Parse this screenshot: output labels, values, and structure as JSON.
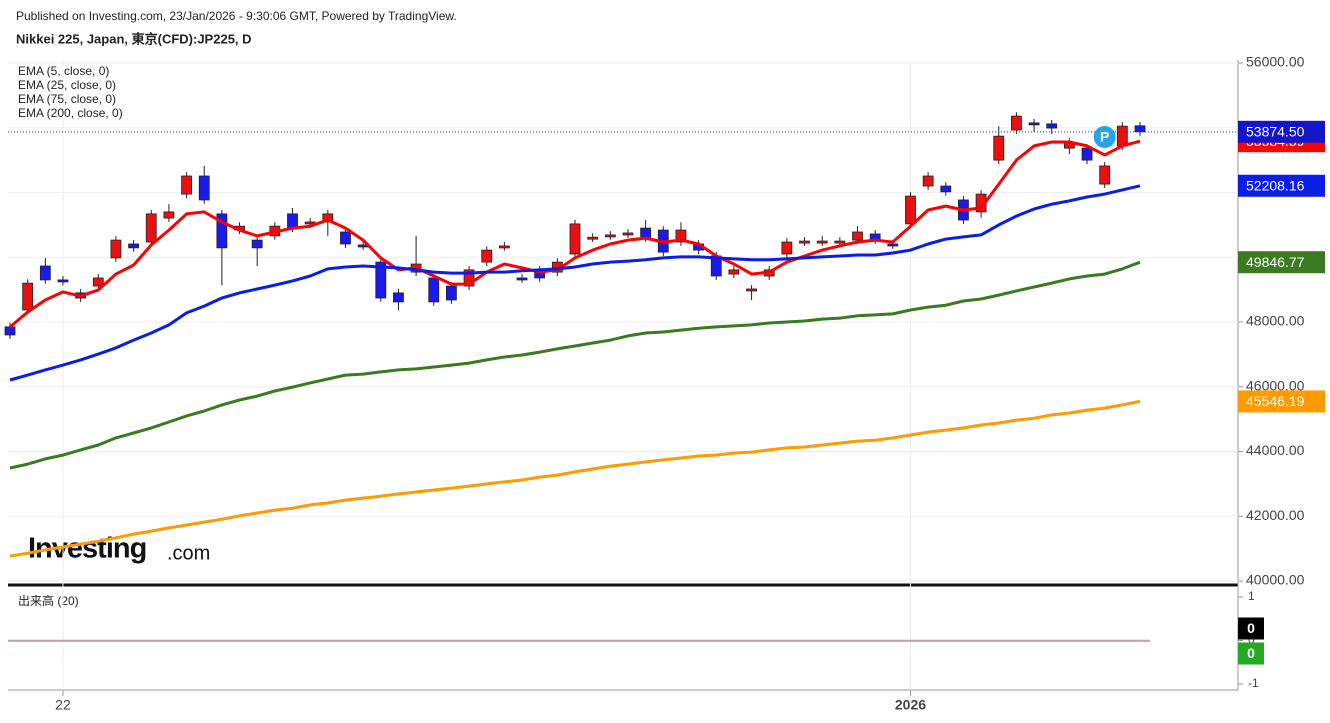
{
  "chart_data": {
    "type": "candlestick",
    "source": "Published on Investing.com, 23/Jan/2026 - 9:30:06 GMT, Powered by TradingView.",
    "title": "Nikkei 225, Japan, 東京(CFD):JP225, D",
    "logo": [
      "Investing",
      ".com"
    ],
    "marker_label": "P",
    "last_label": "53874.50",
    "grid": true,
    "categories": [
      null,
      null,
      null,
      "22",
      null,
      null,
      null,
      null,
      null,
      null,
      null,
      null,
      null,
      null,
      null,
      null,
      null,
      null,
      null,
      null,
      null,
      null,
      null,
      null,
      null,
      null,
      null,
      null,
      null,
      null,
      null,
      null,
      null,
      null,
      null,
      null,
      null,
      null,
      null,
      null,
      null,
      null,
      null,
      null,
      null,
      null,
      null,
      null,
      null,
      null,
      null,
      "2026",
      null,
      null,
      null,
      null,
      null,
      null,
      null,
      null,
      null,
      null,
      null,
      null,
      null
    ],
    "candles": {
      "up_color": "#e81010",
      "down_color": "#1a1aee",
      "open": [
        47850,
        48370,
        49730,
        49300,
        48900,
        49110,
        49980,
        50410,
        50470,
        51210,
        51950,
        52510,
        51340,
        50840,
        50530,
        50660,
        51340,
        51030,
        51090,
        50780,
        50380,
        49850,
        48900,
        49540,
        49360,
        49110,
        49110,
        49850,
        50320,
        49360,
        49610,
        49540,
        50100,
        50590,
        50660,
        50720,
        50900,
        50840,
        50470,
        50410,
        50040,
        49480,
        48990,
        49420,
        50100,
        50470,
        50470,
        50470,
        50530,
        50720,
        50410,
        51030,
        52200,
        52200,
        51770,
        51400,
        53000,
        53930,
        54150,
        54120,
        53370,
        53370,
        52260,
        53440,
        54060
      ],
      "high": [
        47970,
        49320,
        49980,
        49420,
        49020,
        49480,
        50650,
        50530,
        51460,
        51640,
        52630,
        52820,
        51460,
        51080,
        50650,
        51080,
        51520,
        51210,
        51460,
        50900,
        50500,
        49970,
        49020,
        50660,
        49480,
        49230,
        49730,
        50340,
        50470,
        49480,
        49730,
        49970,
        51150,
        50740,
        50810,
        50870,
        51150,
        50960,
        51080,
        50530,
        50160,
        49730,
        49140,
        49730,
        50590,
        50620,
        50660,
        50620,
        50960,
        50840,
        50530,
        52010,
        52630,
        52320,
        51890,
        52070,
        54050,
        54480,
        54270,
        54240,
        53680,
        53490,
        52940,
        54170,
        54180
      ],
      "low": [
        47480,
        48250,
        49180,
        49130,
        48620,
        48990,
        49860,
        50170,
        50350,
        51090,
        51830,
        51650,
        49130,
        50720,
        49730,
        50540,
        50780,
        50910,
        50660,
        50290,
        50230,
        48620,
        48370,
        49420,
        48500,
        48560,
        48990,
        49730,
        50200,
        49210,
        49240,
        49420,
        49980,
        50470,
        50540,
        50600,
        50480,
        50040,
        50350,
        50100,
        49300,
        49360,
        48680,
        49300,
        49980,
        50350,
        50350,
        50350,
        50410,
        50410,
        50260,
        50910,
        52080,
        51900,
        51030,
        51220,
        52880,
        53810,
        53870,
        53810,
        53190,
        52880,
        52140,
        53320,
        53750
      ],
      "close": [
        47600,
        49200,
        49300,
        49250,
        48740,
        49360,
        50530,
        50290,
        51340,
        51400,
        52510,
        51770,
        50290,
        50960,
        50290,
        50960,
        50900,
        51090,
        51340,
        50410,
        50350,
        48740,
        48620,
        49790,
        48620,
        48680,
        49610,
        50220,
        50350,
        49330,
        49360,
        49850,
        51030,
        50620,
        50690,
        50750,
        50600,
        50160,
        50840,
        50220,
        49420,
        49610,
        49020,
        49610,
        50470,
        50500,
        50500,
        50500,
        50780,
        50530,
        50380,
        51890,
        52510,
        52020,
        51150,
        51950,
        53740,
        54360,
        54120,
        53990,
        53560,
        53000,
        52820,
        54050,
        53874.5
      ]
    },
    "series": [
      {
        "name": "EMA (5, close, 0)",
        "color": "#ff0000",
        "values": [
          47845,
          48310,
          48680,
          48930,
          48800,
          48990,
          49480,
          49760,
          50380,
          50840,
          51340,
          51400,
          51090,
          50840,
          50660,
          50780,
          50900,
          50960,
          51150,
          50900,
          50530,
          49980,
          49610,
          49670,
          49420,
          49170,
          49170,
          49540,
          49790,
          49670,
          49540,
          49610,
          49980,
          50220,
          50410,
          50530,
          50590,
          50470,
          50530,
          50410,
          50040,
          49790,
          49480,
          49540,
          49850,
          50040,
          50220,
          50350,
          50470,
          50530,
          50470,
          50960,
          51460,
          51580,
          51460,
          51520,
          52260,
          53000,
          53440,
          53560,
          53560,
          53440,
          53160,
          53440,
          53584.59
        ]
      },
      {
        "name": "EMA (25, close, 0)",
        "color": "#0a1ee8",
        "values": [
          46210,
          46360,
          46520,
          46670,
          46830,
          47010,
          47200,
          47440,
          47660,
          47910,
          48280,
          48490,
          48740,
          48900,
          49020,
          49140,
          49270,
          49420,
          49640,
          49700,
          49730,
          49700,
          49670,
          49610,
          49540,
          49510,
          49510,
          49540,
          49540,
          49580,
          49610,
          49640,
          49700,
          49790,
          49850,
          49880,
          49920,
          49980,
          50010,
          50010,
          49980,
          49950,
          49920,
          49920,
          49950,
          49980,
          50010,
          50040,
          50070,
          50070,
          50130,
          50220,
          50410,
          50560,
          50630,
          50690,
          51000,
          51270,
          51490,
          51640,
          51740,
          51860,
          51950,
          52080,
          52208.16
        ]
      },
      {
        "name": "EMA (75, close, 0)",
        "color": "#3a7a20",
        "values": [
          43490,
          43610,
          43770,
          43890,
          44050,
          44200,
          44420,
          44570,
          44730,
          44910,
          45100,
          45250,
          45440,
          45590,
          45710,
          45870,
          45990,
          46120,
          46240,
          46360,
          46390,
          46460,
          46520,
          46550,
          46610,
          46670,
          46730,
          46830,
          46920,
          46980,
          47070,
          47170,
          47260,
          47350,
          47440,
          47570,
          47660,
          47690,
          47750,
          47810,
          47850,
          47880,
          47910,
          47970,
          48000,
          48030,
          48090,
          48120,
          48190,
          48220,
          48250,
          48370,
          48460,
          48520,
          48650,
          48710,
          48830,
          48960,
          49080,
          49200,
          49330,
          49420,
          49480,
          49640,
          49846.77
        ]
      },
      {
        "name": "EMA (200, close, 0)",
        "color": "#ff9a00",
        "values": [
          40770,
          40860,
          40960,
          41050,
          41140,
          41230,
          41330,
          41450,
          41540,
          41640,
          41730,
          41820,
          41910,
          42010,
          42100,
          42190,
          42250,
          42350,
          42410,
          42500,
          42560,
          42620,
          42690,
          42750,
          42810,
          42870,
          42930,
          43000,
          43060,
          43120,
          43210,
          43270,
          43370,
          43460,
          43550,
          43610,
          43680,
          43740,
          43800,
          43860,
          43890,
          43950,
          43980,
          44050,
          44110,
          44140,
          44200,
          44260,
          44320,
          44350,
          44420,
          44510,
          44600,
          44660,
          44730,
          44820,
          44880,
          44970,
          45030,
          45130,
          45190,
          45280,
          45340,
          45440,
          45546.19
        ]
      }
    ],
    "ylim": [
      40000,
      56000
    ],
    "yticks": [
      {
        "value": 40000,
        "label": "40000.00"
      },
      {
        "value": 42000,
        "label": "42000.00"
      },
      {
        "value": 44000,
        "label": "44000.00"
      },
      {
        "value": 46000,
        "label": "46000.00"
      },
      {
        "value": 48000,
        "label": "48000.00"
      },
      {
        "value": 50000,
        "label": "50000.00"
      },
      {
        "value": 52000,
        "label": "52000.00"
      },
      {
        "value": 54000,
        "label": "54000.00"
      },
      {
        "value": 56000,
        "label": "56000.00"
      }
    ],
    "volume": {
      "title": "出来高 (20)",
      "ylim": [
        -1,
        1
      ],
      "yticks": [
        -1,
        0,
        1
      ],
      "last_values": [
        0,
        0
      ],
      "colors": [
        "#000000",
        "#22aa22"
      ]
    }
  }
}
